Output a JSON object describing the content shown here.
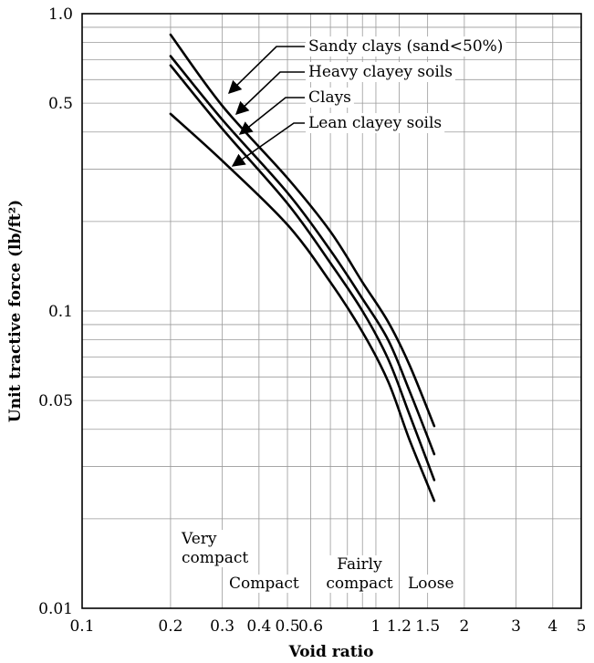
{
  "chart_data": {
    "type": "line",
    "xlabel": "Void ratio",
    "ylabel": "Unit tractive force (lb/ft²)",
    "x_scale": "log",
    "y_scale": "log",
    "xlim": [
      0.1,
      5
    ],
    "ylim": [
      0.01,
      1.0
    ],
    "grid": true,
    "x_ticks": [
      {
        "v": 0.1,
        "label": "0.1"
      },
      {
        "v": 0.2,
        "label": "0.2"
      },
      {
        "v": 0.3,
        "label": "0.3"
      },
      {
        "v": 0.4,
        "label": "0.4"
      },
      {
        "v": 0.5,
        "label": "0.5"
      },
      {
        "v": 0.6,
        "label": "0.6"
      },
      {
        "v": 1,
        "label": "1"
      },
      {
        "v": 1.2,
        "label": "1.2"
      },
      {
        "v": 1.5,
        "label": "1.5"
      },
      {
        "v": 2,
        "label": "2"
      },
      {
        "v": 3,
        "label": "3"
      },
      {
        "v": 4,
        "label": "4"
      },
      {
        "v": 5,
        "label": "5"
      }
    ],
    "y_ticks": [
      {
        "v": 0.01,
        "label": "0.01"
      },
      {
        "v": 0.05,
        "label": "0.05"
      },
      {
        "v": 0.1,
        "label": "0.1"
      },
      {
        "v": 0.5,
        "label": "0.5"
      },
      {
        "v": 1.0,
        "label": "1.0"
      }
    ],
    "x_grid": [
      0.2,
      0.3,
      0.4,
      0.5,
      0.6,
      0.7,
      0.8,
      0.9,
      1,
      1.2,
      1.5,
      2,
      3,
      4
    ],
    "y_grid": [
      0.02,
      0.03,
      0.04,
      0.05,
      0.06,
      0.07,
      0.08,
      0.09,
      0.1,
      0.2,
      0.3,
      0.4,
      0.5,
      0.6,
      0.7,
      0.8,
      0.9
    ],
    "series": [
      {
        "name": "Sandy clays (sand<50%)",
        "x": [
          0.2,
          0.3,
          0.5,
          0.7,
          0.9,
          1.1,
          1.3,
          1.58
        ],
        "y": [
          0.85,
          0.49,
          0.28,
          0.185,
          0.125,
          0.092,
          0.066,
          0.041
        ]
      },
      {
        "name": "Heavy clayey soils",
        "x": [
          0.2,
          0.3,
          0.5,
          0.7,
          0.9,
          1.1,
          1.3,
          1.58
        ],
        "y": [
          0.72,
          0.44,
          0.25,
          0.16,
          0.11,
          0.08,
          0.054,
          0.033
        ]
      },
      {
        "name": "Clays",
        "x": [
          0.2,
          0.3,
          0.5,
          0.7,
          0.9,
          1.1,
          1.3,
          1.58
        ],
        "y": [
          0.67,
          0.41,
          0.23,
          0.145,
          0.1,
          0.069,
          0.045,
          0.027
        ]
      },
      {
        "name": "Lean clayey soils",
        "x": [
          0.2,
          0.3,
          0.5,
          0.7,
          0.9,
          1.1,
          1.3,
          1.58
        ],
        "y": [
          0.46,
          0.32,
          0.195,
          0.125,
          0.085,
          0.058,
          0.037,
          0.023
        ]
      }
    ],
    "annotations": [
      {
        "lines": [
          "Very",
          "compact"
        ]
      },
      {
        "lines": [
          "Compact"
        ]
      },
      {
        "lines": [
          "Fairly",
          "compact"
        ]
      },
      {
        "lines": [
          "Loose"
        ]
      }
    ]
  }
}
